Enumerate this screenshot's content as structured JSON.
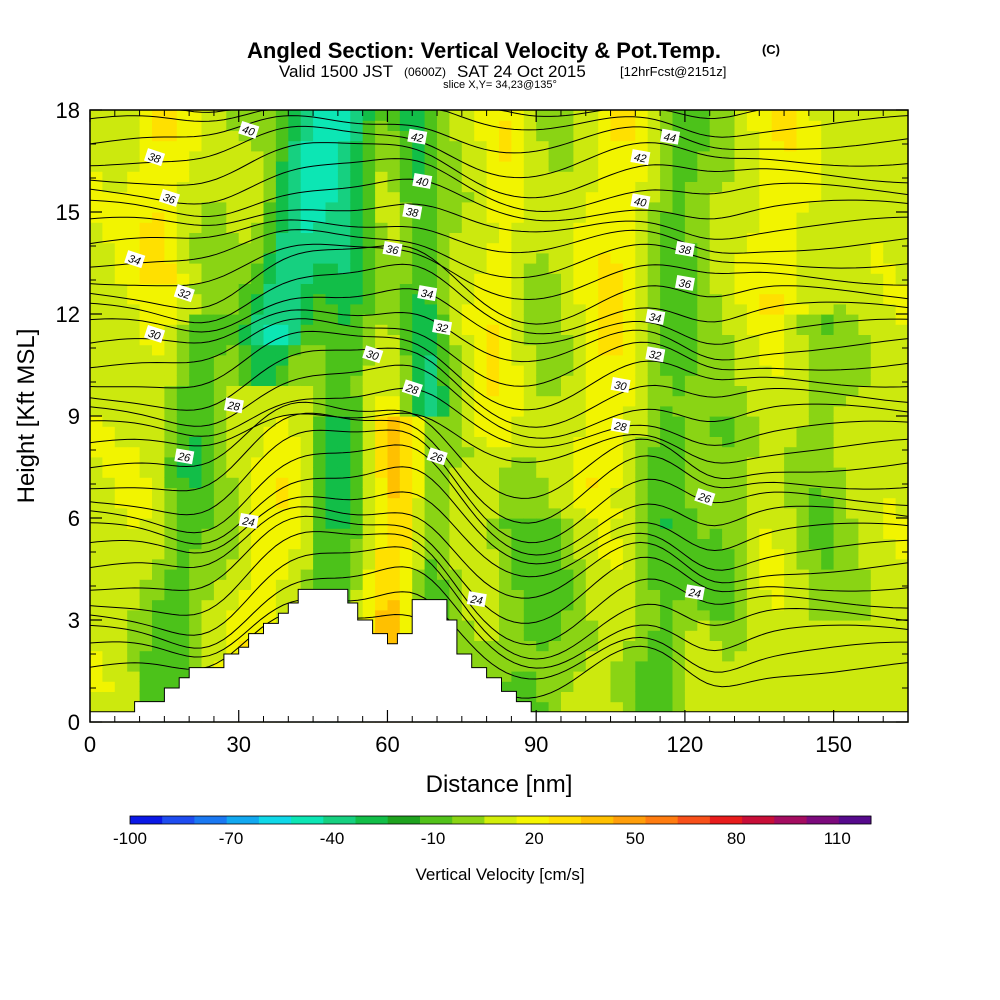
{
  "chart_data": {
    "type": "heatmap",
    "title": "Angled Section: Vertical Velocity & Pot.Temp.",
    "title_mark": "(C)",
    "subtitle_prefix": "Valid 1500 JST",
    "subtitle_z": "(0600Z)",
    "subtitle_date": "SAT 24 Oct 2015",
    "subtitle_fcst": "[12hrFcst@2151z]",
    "slice_text": "slice X,Y= 34,23@135°",
    "xlabel": "Distance [nm]",
    "ylabel": "Height [Kft MSL]",
    "xlim": [
      0,
      165
    ],
    "ylim": [
      0,
      18
    ],
    "x_ticks": [
      "0",
      "30",
      "60",
      "90",
      "120",
      "150"
    ],
    "y_ticks": [
      "0",
      "3",
      "6",
      "9",
      "12",
      "15",
      "18"
    ],
    "colorbar": {
      "label": "Vertical Velocity [cm/s]",
      "tick_labels": [
        "-100",
        "-70",
        "-40",
        "-10",
        "20",
        "50",
        "80",
        "110"
      ],
      "colors": [
        "#0a18e6",
        "#1e4cf0",
        "#1a78f2",
        "#12a8f0",
        "#10d8e8",
        "#0ce6b4",
        "#16d080",
        "#12be48",
        "#1ea21e",
        "#52c21a",
        "#8ad414",
        "#d2ee0a",
        "#f6f600",
        "#ffe000",
        "#ffc000",
        "#ff9e0a",
        "#ff7c10",
        "#f8501a",
        "#e81c1c",
        "#c80e38",
        "#a40c60",
        "#7c0a7c",
        "#560a8c"
      ]
    },
    "contour_labels": [
      {
        "text": "40",
        "x": 32,
        "y": 17.4
      },
      {
        "text": "42",
        "x": 66,
        "y": 17.2
      },
      {
        "text": "44",
        "x": 117,
        "y": 17.2
      },
      {
        "text": "38",
        "x": 13,
        "y": 16.6
      },
      {
        "text": "40",
        "x": 67,
        "y": 15.9
      },
      {
        "text": "42",
        "x": 111,
        "y": 16.6
      },
      {
        "text": "36",
        "x": 16,
        "y": 15.4
      },
      {
        "text": "38",
        "x": 65,
        "y": 15.0
      },
      {
        "text": "40",
        "x": 111,
        "y": 15.3
      },
      {
        "text": "34",
        "x": 9,
        "y": 13.6
      },
      {
        "text": "36",
        "x": 61,
        "y": 13.9
      },
      {
        "text": "38",
        "x": 120,
        "y": 13.9
      },
      {
        "text": "32",
        "x": 19,
        "y": 12.6
      },
      {
        "text": "34",
        "x": 68,
        "y": 12.6
      },
      {
        "text": "36",
        "x": 120,
        "y": 12.9
      },
      {
        "text": "30",
        "x": 13,
        "y": 11.4
      },
      {
        "text": "32",
        "x": 71,
        "y": 11.6
      },
      {
        "text": "34",
        "x": 114,
        "y": 11.9
      },
      {
        "text": "30",
        "x": 57,
        "y": 10.8
      },
      {
        "text": "32",
        "x": 114,
        "y": 10.8
      },
      {
        "text": "28",
        "x": 29,
        "y": 9.3
      },
      {
        "text": "28",
        "x": 65,
        "y": 9.8
      },
      {
        "text": "30",
        "x": 107,
        "y": 9.9
      },
      {
        "text": "26",
        "x": 19,
        "y": 7.8
      },
      {
        "text": "26",
        "x": 70,
        "y": 7.8
      },
      {
        "text": "28",
        "x": 107,
        "y": 8.7
      },
      {
        "text": "24",
        "x": 32,
        "y": 5.9
      },
      {
        "text": "26",
        "x": 124,
        "y": 6.6
      },
      {
        "text": "24",
        "x": 78,
        "y": 3.6
      },
      {
        "text": "24",
        "x": 122,
        "y": 3.8
      }
    ]
  }
}
